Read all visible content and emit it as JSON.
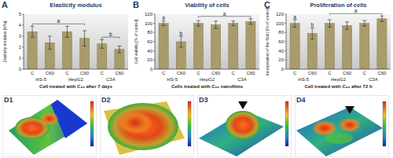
{
  "chart_data": [
    {
      "type": "bar",
      "panel": "A",
      "title": "Elasticity modulus",
      "y_label": "Elasticity modulus [kPa]",
      "x_label": "Cell treated with C₆₀ after 7 days",
      "categories": [
        "C",
        "C60",
        "C",
        "C60",
        "C",
        "C60"
      ],
      "groups": [
        "HS-5",
        "HepG2",
        "C3A"
      ],
      "values": [
        3.4,
        2.4,
        3.4,
        2.8,
        2.3,
        1.8
      ],
      "errors": [
        0.5,
        0.6,
        0.5,
        0.7,
        0.4,
        0.3
      ],
      "letters": [
        "a",
        "a",
        "a",
        "a",
        "b",
        "b"
      ],
      "color": "#a89b6c",
      "ylim": [
        0,
        5
      ],
      "yticks": [
        0,
        1,
        2,
        3,
        4,
        5
      ],
      "grid": false
    },
    {
      "type": "bar",
      "panel": "B",
      "title": "Viability of cells",
      "y_label": "Cell viability [% of control]",
      "x_label": "Cells treated with C₆₀ nanofilms",
      "categories": [
        "C",
        "C60",
        "C",
        "C60",
        "C",
        "C60"
      ],
      "groups": [
        "HS-5",
        "HepG2",
        "C3A"
      ],
      "values": [
        100,
        60,
        100,
        97,
        100,
        104
      ],
      "errors": [
        5,
        12,
        6,
        8,
        5,
        6
      ],
      "letters": [
        "a",
        "b",
        "a",
        "a",
        "a",
        "a"
      ],
      "color": "#a89b6c",
      "ylim": [
        0,
        120
      ],
      "yticks": [
        0,
        20,
        40,
        60,
        80,
        100,
        120
      ],
      "grid": false
    },
    {
      "type": "bar",
      "panel": "C",
      "title": "Proliferation of cells",
      "y_label": "Incorporation of the BrdU [% of control]",
      "x_label": "Cell treated with C₆₀ after 72 h",
      "categories": [
        "C",
        "C60",
        "C",
        "C60",
        "C",
        "C60"
      ],
      "groups": [
        "HS-5",
        "HepG2",
        "C3A"
      ],
      "values": [
        100,
        78,
        100,
        95,
        100,
        110
      ],
      "errors": [
        8,
        12,
        8,
        8,
        6,
        6
      ],
      "letters": [
        "a",
        "b",
        "a",
        "a",
        "a",
        "a"
      ],
      "color": "#a89b6c",
      "ylim": [
        0,
        120
      ],
      "yticks": [
        0,
        20,
        40,
        60,
        80,
        100,
        120
      ],
      "grid": false
    }
  ],
  "images": [
    {
      "label": "D1"
    },
    {
      "label": "D2"
    },
    {
      "label": "D3"
    },
    {
      "label": "D4"
    }
  ]
}
